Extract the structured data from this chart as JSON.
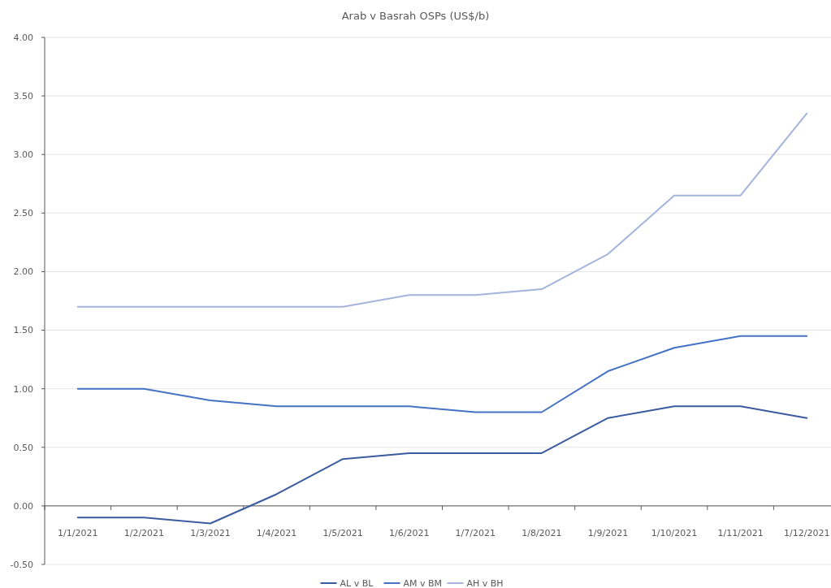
{
  "chart_data": {
    "type": "line",
    "title": "Arab v Basrah OSPs (US$/b)",
    "categories": [
      "1/1/2021",
      "1/2/2021",
      "1/3/2021",
      "1/4/2021",
      "1/5/2021",
      "1/6/2021",
      "1/7/2021",
      "1/8/2021",
      "1/9/2021",
      "1/10/2021",
      "1/11/2021",
      "1/12/2021"
    ],
    "series": [
      {
        "name": "AL v BL",
        "color": "#3a5ba0",
        "values": [
          -0.1,
          -0.1,
          -0.15,
          0.1,
          0.4,
          0.45,
          0.45,
          0.45,
          0.75,
          0.85,
          0.85,
          0.75
        ]
      },
      {
        "name": "AM v BM",
        "color": "#4472c4",
        "values": [
          1.0,
          1.0,
          0.9,
          0.85,
          0.85,
          0.85,
          0.8,
          0.8,
          1.15,
          1.35,
          1.45,
          1.45
        ]
      },
      {
        "name": "AH v BH",
        "color": "#a5b4dc",
        "values": [
          1.7,
          1.7,
          1.7,
          1.7,
          1.7,
          1.8,
          1.8,
          1.85,
          2.15,
          2.65,
          2.65,
          3.35
        ]
      }
    ],
    "ylim": [
      -0.5,
      4.0
    ],
    "yticks": [
      {
        "value": -0.5,
        "label": "-0.50"
      },
      {
        "value": 0,
        "label": "0.00"
      },
      {
        "value": 0.5,
        "label": "0.50"
      },
      {
        "value": 1,
        "label": "1.00"
      },
      {
        "value": 1.5,
        "label": "1.50"
      },
      {
        "value": 2,
        "label": "2.00"
      },
      {
        "value": 2.5,
        "label": "2.50"
      },
      {
        "value": 3,
        "label": "3.00"
      },
      {
        "value": 3.5,
        "label": "3.50"
      },
      {
        "value": 4,
        "label": "4.00"
      }
    ],
    "grid": "y",
    "legend": "bottom",
    "line_style": "solid",
    "marker": "none"
  }
}
